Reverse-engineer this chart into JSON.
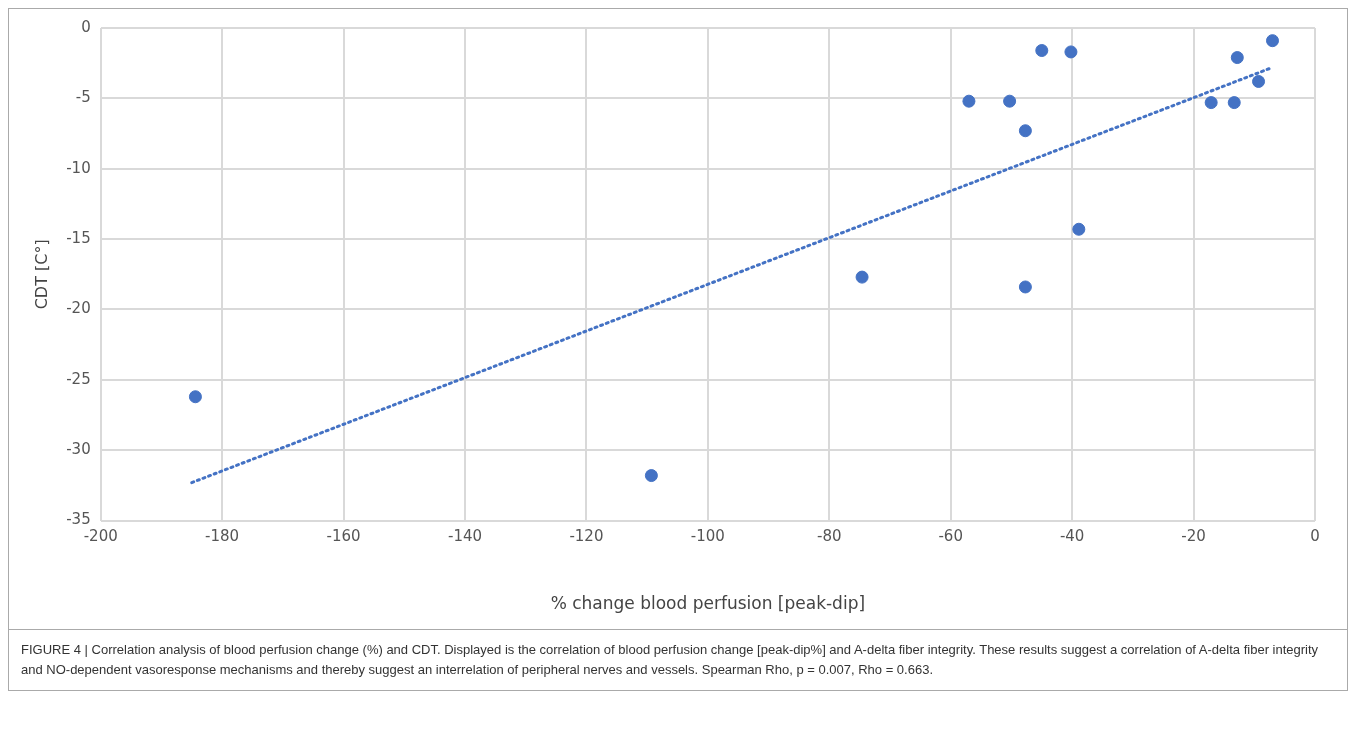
{
  "chart_data": {
    "type": "scatter",
    "xlabel": "% change blood perfusion [peak-dip]",
    "ylabel": "CDT [C°]",
    "xlim": [
      -200,
      0
    ],
    "xticks": [
      -200,
      -180,
      -160,
      -140,
      -120,
      -100,
      -80,
      -60,
      -40,
      -20,
      0
    ],
    "ylim": [
      -35,
      0
    ],
    "yticks": [
      -35,
      -30,
      -25,
      -20,
      -15,
      -10,
      -5,
      0
    ],
    "grid": true,
    "legend": false,
    "marker": "circle",
    "series": [
      {
        "type": "scatter",
        "color": "#4472c4",
        "x": [
          -7.0,
          -45.0,
          -40.2,
          -12.8,
          -9.3,
          -57.0,
          -50.3,
          -17.1,
          -13.3,
          -47.7,
          -38.9,
          -74.6,
          -47.7,
          -184.4,
          -109.3
        ],
        "values": [
          -0.9,
          -1.6,
          -1.7,
          -2.1,
          -3.8,
          -5.2,
          -5.2,
          -5.3,
          -5.3,
          -7.3,
          -14.3,
          -17.7,
          -18.4,
          -26.2,
          -31.8
        ]
      },
      {
        "type": "line",
        "line_style": "dotted",
        "marker": "none",
        "color": "#4472c4",
        "x": [
          -185,
          -7
        ],
        "values": [
          -32.3,
          -2.8
        ]
      }
    ],
    "annotations": [
      "FIGURE 4 | Correlation analysis of blood perfusion change (%) and CDT. Displayed is the correlation of blood perfusion change [peak-dip%] and A-delta fiber integrity. These results suggest a correlation of A-delta fiber integrity and NO-dependent vasoresponse mechanisms and thereby suggest an interrelation of peripheral nerves and vessels. Spearman Rho, p = 0.007, Rho = 0.663."
    ]
  }
}
